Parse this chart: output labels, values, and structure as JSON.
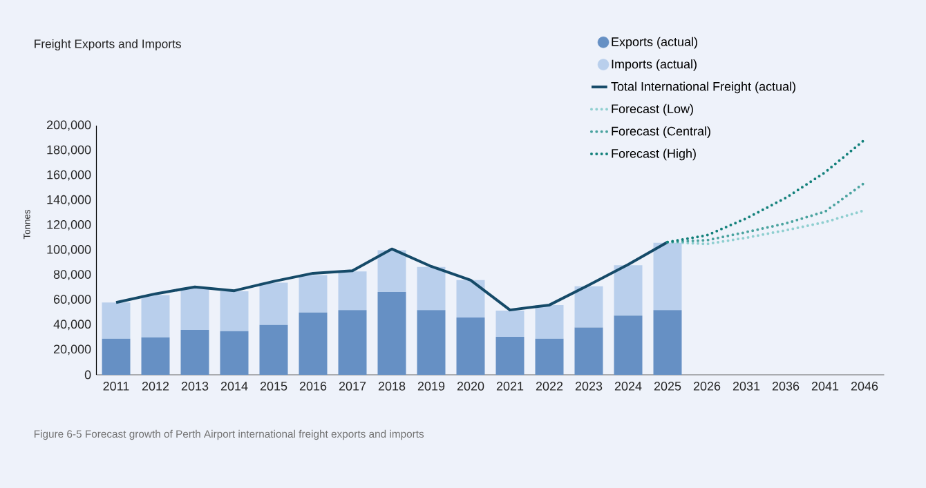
{
  "chart_data": {
    "type": "bar",
    "title": "Freight Exports and Imports",
    "ylabel": "Tonnes",
    "annotations": [
      "Figure 6-5 Forecast growth of Perth Airport international freight exports and imports"
    ],
    "categories": [
      "2011",
      "2012",
      "2013",
      "2014",
      "2015",
      "2016",
      "2017",
      "2018",
      "2019",
      "2020",
      "2021",
      "2022",
      "2023",
      "2024",
      "2025",
      "2026",
      "2031",
      "2036",
      "2041",
      "2046"
    ],
    "stacked": true,
    "legend": "top right",
    "ylim": [
      0,
      200000
    ],
    "yticks": [
      0,
      {
        "value": 20000,
        "label": "20,000"
      },
      {
        "value": 40000,
        "label": "40,000"
      },
      {
        "value": 60000,
        "label": "60,000"
      },
      {
        "value": 80000,
        "label": "80,000"
      },
      {
        "value": 100000,
        "label": "100,000"
      },
      {
        "value": 120000,
        "label": "120,000"
      },
      {
        "value": 140000,
        "label": "140,000"
      },
      {
        "value": 160000,
        "label": "160,000"
      },
      {
        "value": 180000,
        "label": "180,000"
      },
      {
        "value": 200000,
        "label": "200,000"
      }
    ],
    "series": [
      {
        "name": "Exports (actual)",
        "color": "#6690c4",
        "values": [
          29000,
          30000,
          36000,
          35000,
          40000,
          50000,
          52000,
          66500,
          52000,
          46000,
          30500,
          29000,
          38000,
          47500,
          52000,
          null,
          null,
          null,
          null,
          null
        ]
      },
      {
        "name": "Imports (actual)",
        "color": "#b9cfec",
        "values": [
          29000,
          34000,
          34000,
          32000,
          34000,
          30000,
          31000,
          33500,
          34500,
          30000,
          21000,
          27000,
          33000,
          40500,
          54000,
          null,
          null,
          null,
          null,
          null
        ]
      },
      {
        "name": "Total International Freight (actual)",
        "type": "line",
        "line_style": "solid",
        "color": "#154a68",
        "values": [
          58000,
          65000,
          70500,
          67500,
          75000,
          81500,
          83500,
          101000,
          87000,
          76000,
          52000,
          56000,
          72000,
          88500,
          106500,
          null,
          null,
          null,
          null,
          null
        ]
      },
      {
        "name": "Forecast (Low)",
        "type": "line",
        "line_style": "dotted",
        "color": "#8fcfd0",
        "values": [
          null,
          null,
          null,
          null,
          null,
          null,
          null,
          null,
          null,
          null,
          null,
          null,
          null,
          null,
          106500,
          105000,
          110000,
          116000,
          122500,
          132000
        ]
      },
      {
        "name": "Forecast (Central)",
        "type": "line",
        "line_style": "dotted",
        "color": "#4aa39f",
        "values": [
          null,
          null,
          null,
          null,
          null,
          null,
          null,
          null,
          null,
          null,
          null,
          null,
          null,
          null,
          106500,
          108000,
          114500,
          121500,
          131000,
          154000
        ]
      },
      {
        "name": "Forecast (High)",
        "type": "line",
        "line_style": "dotted",
        "color": "#12807a",
        "values": [
          null,
          null,
          null,
          null,
          null,
          null,
          null,
          null,
          null,
          null,
          null,
          null,
          null,
          null,
          106500,
          112000,
          125500,
          142000,
          162500,
          188500
        ]
      }
    ]
  }
}
